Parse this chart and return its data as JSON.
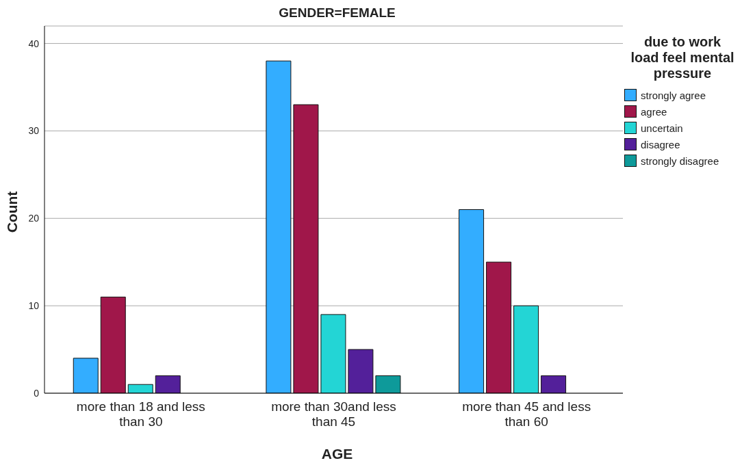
{
  "chart_data": {
    "type": "bar",
    "title": "GENDER=FEMALE",
    "xlabel": "AGE",
    "ylabel": "Count",
    "legend_title": "due to work load feel mental pressure",
    "categories": [
      "more than 18 and less than 30",
      "more than 30and less than 45",
      "more than 45 and less than 60"
    ],
    "series": [
      {
        "name": "strongly agree",
        "color": "#33adff",
        "values": [
          4,
          38,
          21
        ]
      },
      {
        "name": "agree",
        "color": "#a0174a",
        "values": [
          11,
          33,
          15
        ]
      },
      {
        "name": "uncertain",
        "color": "#23d5d5",
        "values": [
          1,
          9,
          10
        ]
      },
      {
        "name": "disagree",
        "color": "#53209a",
        "values": [
          2,
          5,
          2
        ]
      },
      {
        "name": "strongly disagree",
        "color": "#0e9a9a",
        "values": [
          null,
          2,
          null
        ]
      }
    ],
    "ylim": [
      0,
      42
    ],
    "yticks": [
      0,
      10,
      20,
      30,
      40
    ],
    "grid": "y",
    "legend": "right"
  }
}
